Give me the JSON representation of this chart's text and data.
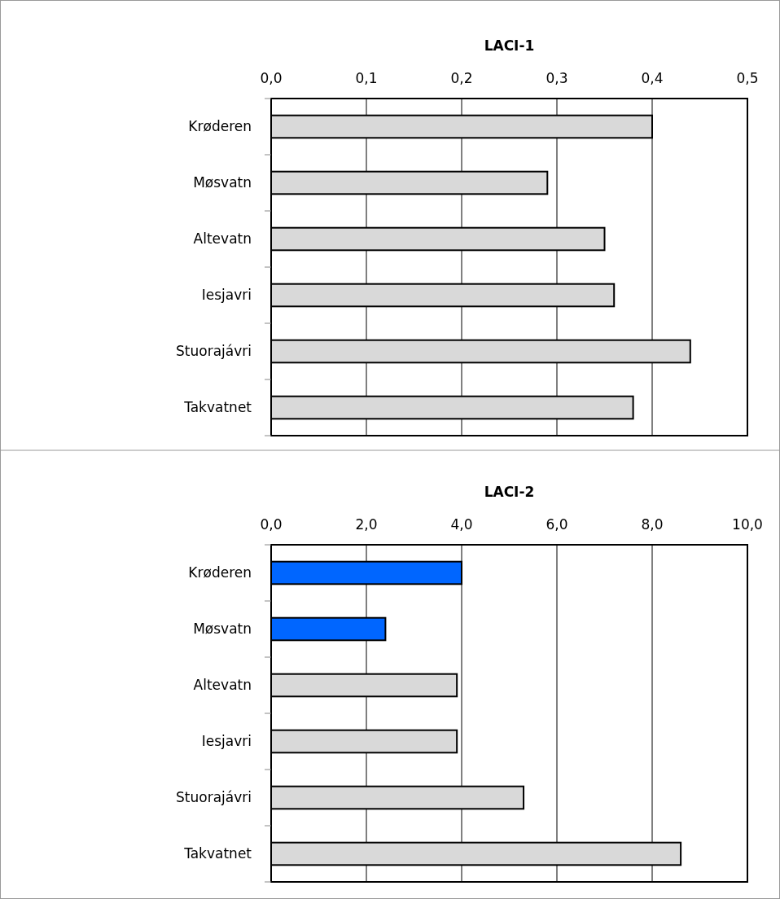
{
  "chart_data": [
    {
      "type": "bar",
      "orientation": "horizontal",
      "title": "LACI-1",
      "categories": [
        "Krøderen",
        "Møsvatn",
        "Altevatn",
        "Iesjavri",
        "Stuorajávri",
        "Takvatnet"
      ],
      "values": [
        0.4,
        0.29,
        0.35,
        0.36,
        0.44,
        0.38
      ],
      "colors": [
        "#d9d9d9",
        "#d9d9d9",
        "#d9d9d9",
        "#d9d9d9",
        "#d9d9d9",
        "#d9d9d9"
      ],
      "xlim": [
        0,
        0.5
      ],
      "xticks": [
        {
          "value": 0,
          "label": "0,0"
        },
        {
          "value": 0.1,
          "label": "0,1"
        },
        {
          "value": 0.2,
          "label": "0,2"
        },
        {
          "value": 0.3,
          "label": "0,3"
        },
        {
          "value": 0.4,
          "label": "0,4"
        },
        {
          "value": 0.5,
          "label": "0,5"
        }
      ],
      "grid": "x"
    },
    {
      "type": "bar",
      "orientation": "horizontal",
      "title": "LACI-2",
      "categories": [
        "Krøderen",
        "Møsvatn",
        "Altevatn",
        "Iesjavri",
        "Stuorajávri",
        "Takvatnet"
      ],
      "values": [
        4.0,
        2.4,
        3.9,
        3.9,
        5.3,
        8.6
      ],
      "colors": [
        "#0066ff",
        "#0066ff",
        "#d9d9d9",
        "#d9d9d9",
        "#d9d9d9",
        "#d9d9d9"
      ],
      "xlim": [
        0,
        10
      ],
      "xticks": [
        {
          "value": 0,
          "label": "0,0"
        },
        {
          "value": 2,
          "label": "2,0"
        },
        {
          "value": 4,
          "label": "4,0"
        },
        {
          "value": 6,
          "label": "6,0"
        },
        {
          "value": 8,
          "label": "8,0"
        },
        {
          "value": 10,
          "label": "10,0"
        }
      ],
      "grid": "x"
    }
  ]
}
